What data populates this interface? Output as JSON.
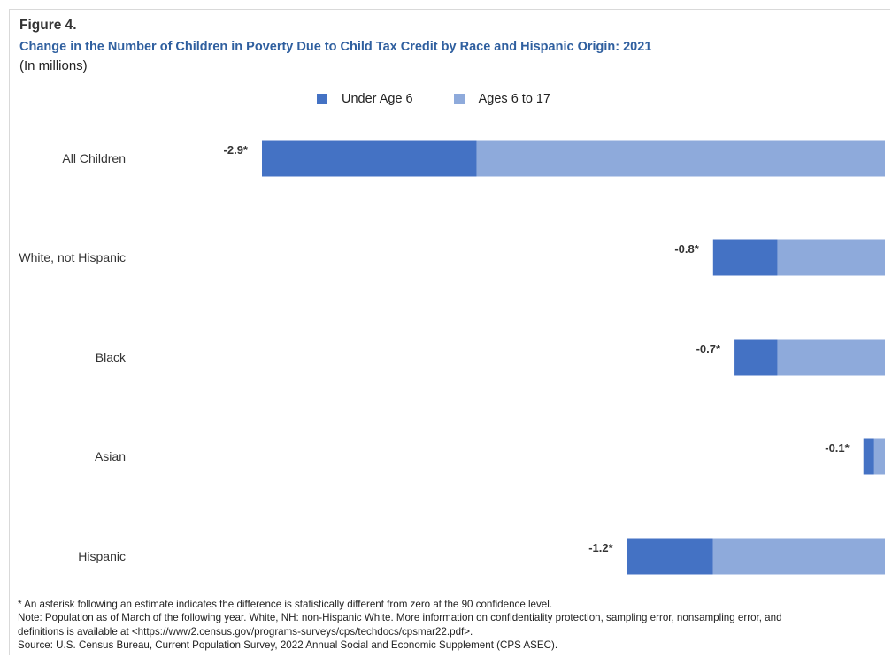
{
  "figure_label": "Figure 4.",
  "chart_data": {
    "type": "bar",
    "orientation": "horizontal-stacked",
    "title": "Change in the Number of Children in Poverty Due to Child Tax Credit by Race and Hispanic Origin: 2021",
    "subtitle": "(In millions)",
    "categories": [
      "All Children",
      "White, not Hispanic",
      "Black",
      "Asian",
      "Hispanic"
    ],
    "series": [
      {
        "name": "Under Age 6",
        "color": "#4472c4",
        "values": [
          -1.0,
          -0.3,
          -0.2,
          -0.05,
          -0.4
        ]
      },
      {
        "name": "Ages 6 to 17",
        "color": "#8eaadb",
        "values": [
          -1.9,
          -0.5,
          -0.5,
          -0.05,
          -0.8
        ]
      }
    ],
    "totals": [
      -2.9,
      -0.8,
      -0.7,
      -0.1,
      -1.2
    ],
    "total_labels": [
      "-2.9*",
      "-0.8*",
      "-0.7*",
      "-0.1*",
      "-1.2*"
    ],
    "xlim": [
      -2.9,
      0
    ],
    "legend": "top-center",
    "grid": false
  },
  "footnotes": [
    "* An asterisk following an estimate indicates the difference is statistically different from zero at the 90 confidence level.",
    "Note: Population as of March of the following year.  White, NH: non-Hispanic White. More information on confidentiality protection, sampling error, nonsampling error, and",
    "definitions is available at <https://www2.census.gov/programs-surveys/cps/techdocs/cpsmar22.pdf>.",
    "Source: U.S. Census Bureau, Current Population Survey, 2022 Annual Social and Economic Supplement (CPS ASEC)."
  ]
}
